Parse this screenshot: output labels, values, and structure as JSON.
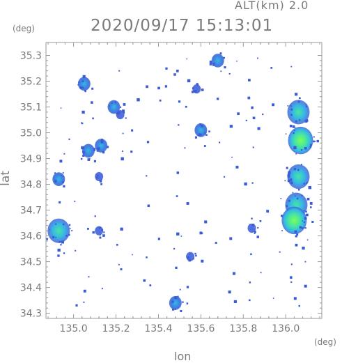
{
  "header": {
    "altitude_label": "ALT(km) 2.0",
    "timestamp": "2020/09/17 15:13:01"
  },
  "axes": {
    "lat_unit": "(deg)",
    "lon_unit": "(deg)",
    "lat_title": "lat",
    "lon_title": "lon",
    "lat_ticks": [
      "35.3",
      "35.2",
      "35.1",
      "35.0",
      "34.9",
      "34.8",
      "34.7",
      "34.6",
      "34.5",
      "34.4",
      "34.3"
    ],
    "lon_ticks": [
      "135.0",
      "135.2",
      "135.4",
      "135.6",
      "135.8",
      "136.0"
    ],
    "lon_range": [
      134.87,
      136.17
    ],
    "lat_range": [
      34.28,
      35.35
    ]
  },
  "colors": {
    "frame": "#9a9a9a",
    "weak_echo": "#3a5bd6",
    "medium_echo": "#35b8e6",
    "strong_echo": "#48e6a0",
    "peak_echo": "#7bff5a"
  },
  "echoes": [
    {
      "lon": 135.05,
      "lat": 35.19,
      "level": "medium"
    },
    {
      "lon": 135.19,
      "lat": 35.1,
      "level": "medium"
    },
    {
      "lon": 135.22,
      "lat": 35.07,
      "level": "weak"
    },
    {
      "lon": 135.07,
      "lat": 34.93,
      "level": "medium"
    },
    {
      "lon": 135.13,
      "lat": 34.95,
      "level": "medium"
    },
    {
      "lon": 134.93,
      "lat": 34.82,
      "level": "medium"
    },
    {
      "lon": 135.12,
      "lat": 34.83,
      "level": "weak"
    },
    {
      "lon": 135.6,
      "lat": 35.01,
      "level": "medium"
    },
    {
      "lon": 135.68,
      "lat": 35.28,
      "level": "medium"
    },
    {
      "lon": 135.58,
      "lat": 35.17,
      "level": "weak"
    },
    {
      "lon": 134.93,
      "lat": 34.62,
      "level": "strong"
    },
    {
      "lon": 135.12,
      "lat": 34.62,
      "level": "weak"
    },
    {
      "lon": 135.55,
      "lat": 34.52,
      "level": "weak"
    },
    {
      "lon": 135.48,
      "lat": 34.34,
      "level": "medium"
    },
    {
      "lon": 136.06,
      "lat": 35.08,
      "level": "strong"
    },
    {
      "lon": 136.07,
      "lat": 34.97,
      "level": "peak"
    },
    {
      "lon": 136.06,
      "lat": 34.83,
      "level": "strong"
    },
    {
      "lon": 136.05,
      "lat": 34.72,
      "level": "strong"
    },
    {
      "lon": 136.04,
      "lat": 34.66,
      "level": "peak"
    },
    {
      "lon": 135.84,
      "lat": 34.63,
      "level": "weak"
    }
  ]
}
